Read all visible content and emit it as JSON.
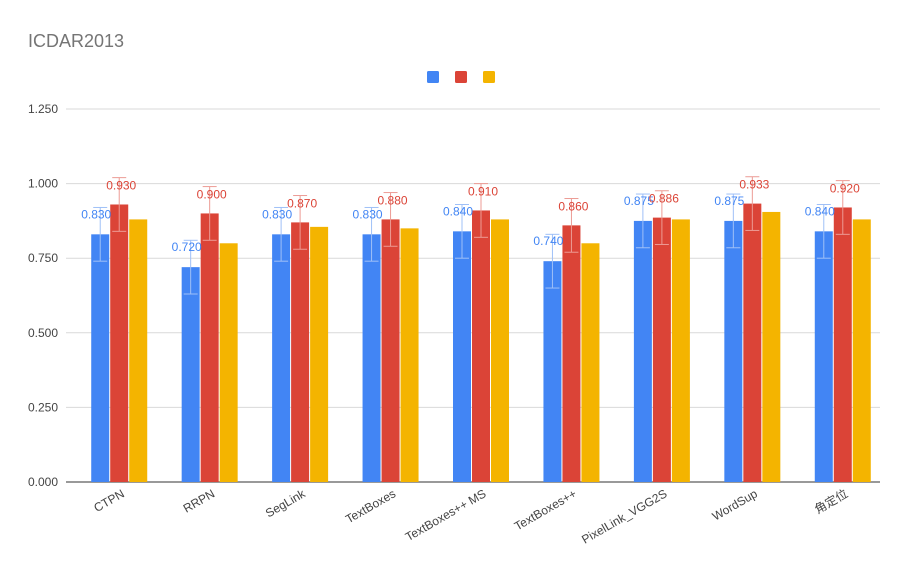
{
  "chart_data": {
    "type": "bar",
    "title": "ICDAR2013",
    "xlabel": "",
    "ylabel": "",
    "ylim": [
      0,
      1.25
    ],
    "yticks": [
      "0.000",
      "0.250",
      "0.500",
      "0.750",
      "1.000",
      "1.250"
    ],
    "grid": true,
    "legend_position": "top",
    "categories": [
      "CTPN",
      "RRPN",
      "SegLink",
      "TextBoxes",
      "TextBoxes++ MS",
      "TextBoxes++",
      "PixelLink_VGG2S",
      "WordSup",
      "角定位"
    ],
    "series": [
      {
        "color": "#4285f4",
        "values": [
          0.83,
          0.72,
          0.83,
          0.83,
          0.84,
          0.74,
          0.875,
          0.875,
          0.84
        ],
        "labels": [
          "0.830",
          "0.720",
          "0.830",
          "0.830",
          "0.840",
          "0.740",
          "0.875",
          "0.875",
          "0.840"
        ]
      },
      {
        "color": "#db4437",
        "values": [
          0.93,
          0.9,
          0.87,
          0.88,
          0.91,
          0.86,
          0.886,
          0.933,
          0.92
        ],
        "labels": [
          "0.930",
          "0.900",
          "0.870",
          "0.880",
          "0.910",
          "0.860",
          "0.886",
          "0.933",
          "0.920"
        ]
      },
      {
        "color": "#f4b400",
        "values": [
          0.88,
          0.8,
          0.855,
          0.85,
          0.88,
          0.8,
          0.88,
          0.905,
          0.88
        ],
        "labels": []
      }
    ],
    "error_bars": {
      "series_index": [
        0,
        1
      ],
      "plus_minus": 0.09
    }
  }
}
